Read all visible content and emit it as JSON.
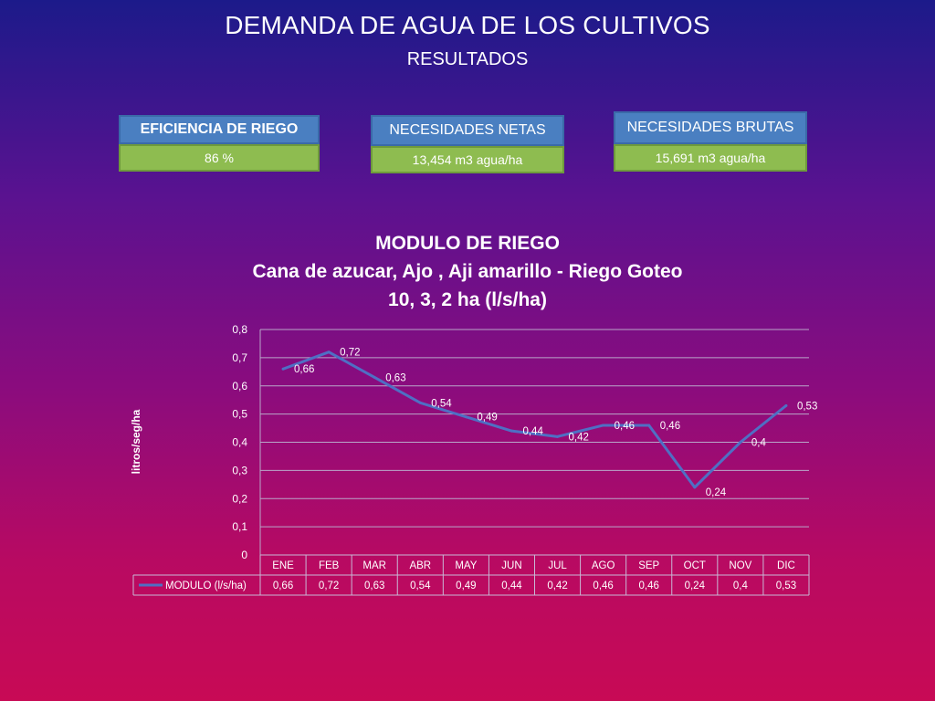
{
  "header": {
    "title": "DEMANDA  DE AGUA DE LOS CULTIVOS",
    "subtitle": "RESULTADOS"
  },
  "cards": {
    "eficiencia": {
      "label": "EFICIENCIA DE RIEGO",
      "value": "86 %"
    },
    "netas": {
      "label": "NECESIDADES NETAS",
      "value": "13,454  m3 agua/ha"
    },
    "brutas": {
      "label": "NECESIDADES BRUTAS",
      "value": "15,691   m3 agua/ha"
    }
  },
  "colors": {
    "line": "#4f6fc4",
    "card_header": "#4a7fc1",
    "card_value": "#8ebc50"
  },
  "chart_data": {
    "type": "line",
    "title_lines": [
      "MODULO DE RIEGO",
      "Cana de azucar, Ajo , Aji amarillo -  Riego Goteo",
      "10, 3, 2  ha (l/s/ha)"
    ],
    "ylabel": "litros/seg/ha",
    "ylim": [
      0,
      0.8
    ],
    "yticks": [
      "0",
      "0,1",
      "0,2",
      "0,3",
      "0,4",
      "0,5",
      "0,6",
      "0,7",
      "0,8"
    ],
    "categories": [
      "ENE",
      "FEB",
      "MAR",
      "ABR",
      "MAY",
      "JUN",
      "JUL",
      "AGO",
      "SEP",
      "OCT",
      "NOV",
      "DIC"
    ],
    "series": [
      {
        "name": "MODULO (l/s/ha)",
        "values": [
          0.66,
          0.72,
          0.63,
          0.54,
          0.49,
          0.44,
          0.42,
          0.46,
          0.46,
          0.24,
          0.4,
          0.53
        ],
        "labels": [
          "0,66",
          "0,72",
          "0,63",
          "0,54",
          "0,49",
          "0,44",
          "0,42",
          "0,46",
          "0,46",
          "0,24",
          "0,4",
          "0,53"
        ]
      }
    ],
    "grid": true,
    "legend": "data-table"
  }
}
